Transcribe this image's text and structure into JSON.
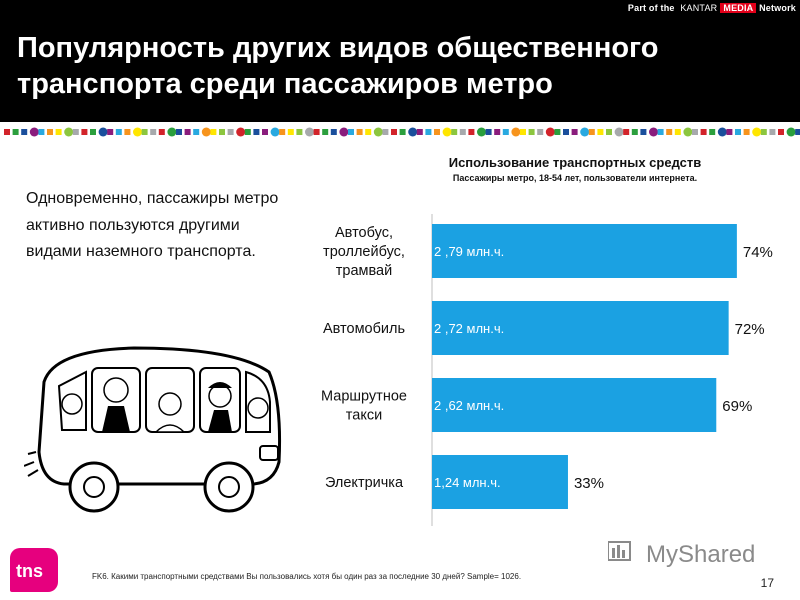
{
  "header": {
    "network_prefix": "Part of the",
    "network_brand": "KANTAR",
    "network_media": "MEDIA",
    "network_suffix": "Network",
    "title": "Популярность других видов общественного транспорта среди пассажиров метро"
  },
  "intro_text": "Одновременно, пассажиры метро активно пользуются другими видами наземного транспорта.",
  "dot_colors": [
    "#d2232a",
    "#2b9f3d",
    "#1a4f9c",
    "#8a1c7c",
    "#29a9e0",
    "#f7941d",
    "#ffe600",
    "#8cc63f",
    "#a7a9ac"
  ],
  "chart_data": {
    "type": "bar",
    "orientation": "horizontal",
    "title": "Использование транспортных средств",
    "subtitle": "Пассажиры метро, 18-54 лет, пользователи интернета.",
    "categories": [
      "Автобус, троллейбус, трамвай",
      "Автомобиль",
      "Маршрутное такси",
      "Электричка"
    ],
    "values": [
      74,
      72,
      69,
      33
    ],
    "value_labels": [
      "74%",
      "72%",
      "69%",
      "33%"
    ],
    "bar_labels": [
      "2 ,79 млн.ч.",
      "2 ,72 млн.ч.",
      "2 ,62 млн.ч.",
      "1,24 млн.ч."
    ],
    "xlim": [
      0,
      100
    ],
    "color": "#1ba1e2"
  },
  "footnote": "FK6. Какими транспортными средствами Вы пользовались хотя бы один раз за последние 30 дней? Sample= 1026.",
  "page_number": "17",
  "logo_text": "tns",
  "watermark": "MyShared"
}
